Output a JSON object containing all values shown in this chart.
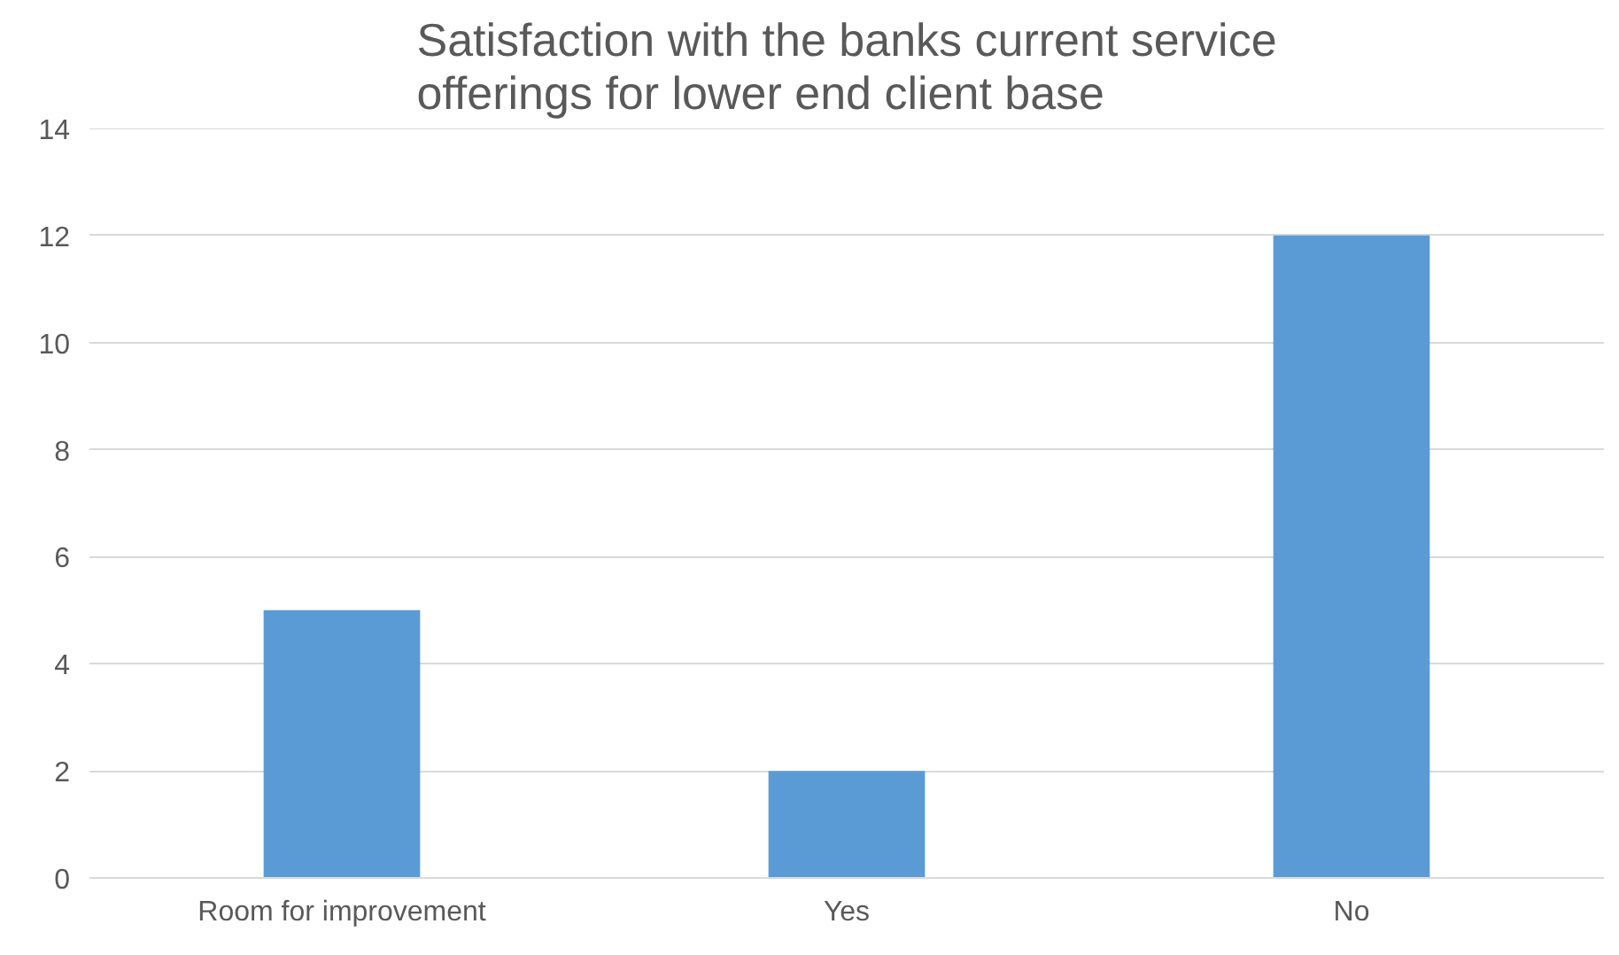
{
  "chart_data": {
    "type": "bar",
    "title": "Satisfaction with the banks current service\nofferings  for lower end client base",
    "categories": [
      "Room for improvement",
      "Yes",
      "No"
    ],
    "values": [
      5,
      2,
      12
    ],
    "color": "#5b9bd5",
    "ylim": [
      0,
      14
    ],
    "yticks": [
      0,
      2,
      4,
      6,
      8,
      10,
      12,
      14
    ],
    "grid": "y"
  }
}
